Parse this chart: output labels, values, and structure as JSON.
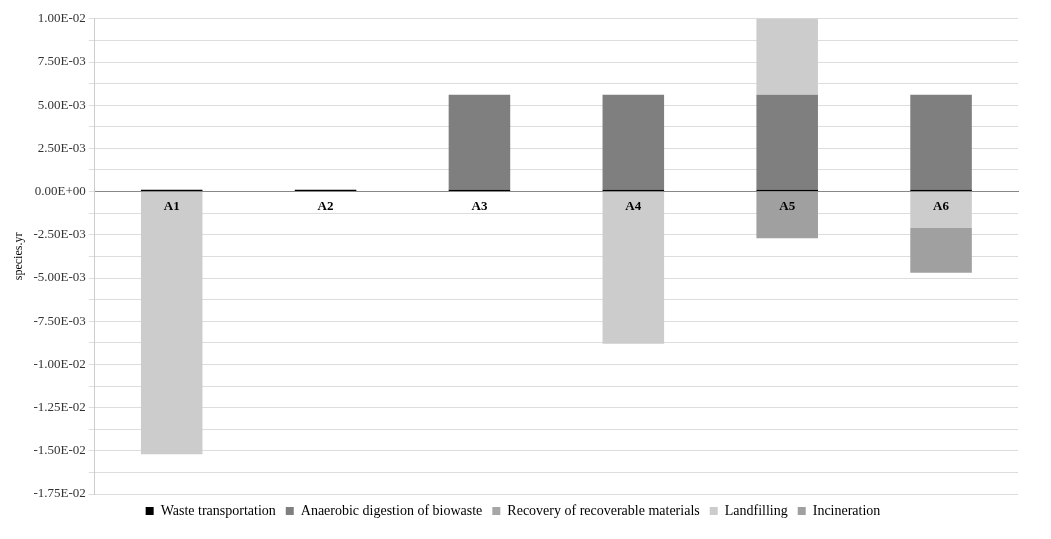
{
  "chart_data": {
    "type": "bar",
    "stacked": true,
    "ylabel": "species.yr",
    "categories": [
      "A1",
      "A2",
      "A3",
      "A4",
      "A5",
      "A6"
    ],
    "series": [
      {
        "name": "Waste transportation",
        "color": "#000000",
        "values": [
          0.0001,
          0.0001,
          0.0001,
          0.0001,
          0.0001,
          0.0001
        ]
      },
      {
        "name": "Anaerobic digestion of biowaste",
        "color": "#7f7f7f",
        "values": [
          null,
          null,
          0.0055,
          0.0055,
          0.0055,
          0.0055
        ]
      },
      {
        "name": "Recovery of recoverable materials",
        "color": "#a6a6a6",
        "values": [
          null,
          null,
          null,
          null,
          null,
          null
        ]
      },
      {
        "name": "Landfilling",
        "color": "#cccccc",
        "values": [
          -0.0152,
          null,
          null,
          -0.0088,
          0.0045,
          -0.0021
        ]
      },
      {
        "name": "Incineration",
        "color": "#a0a0a0",
        "values": [
          null,
          null,
          null,
          null,
          -0.0027,
          -0.0026
        ]
      }
    ],
    "ylim": [
      -0.0175,
      0.01
    ],
    "yticks": [
      {
        "value": -0.0175,
        "label": "-1.75E-02"
      },
      {
        "value": -0.01625,
        "label": null
      },
      {
        "value": -0.015,
        "label": "-1.50E-02"
      },
      {
        "value": -0.01375,
        "label": null
      },
      {
        "value": -0.0125,
        "label": "-1.25E-02"
      },
      {
        "value": -0.01125,
        "label": null
      },
      {
        "value": -0.01,
        "label": "-1.00E-02"
      },
      {
        "value": -0.00875,
        "label": null
      },
      {
        "value": -0.0075,
        "label": "-7.50E-03"
      },
      {
        "value": -0.00625,
        "label": null
      },
      {
        "value": -0.005,
        "label": "-5.00E-03"
      },
      {
        "value": -0.00375,
        "label": null
      },
      {
        "value": -0.0025,
        "label": "-2.50E-03"
      },
      {
        "value": -0.00125,
        "label": null
      },
      {
        "value": 0,
        "label": "0.00E+00"
      },
      {
        "value": 0.00125,
        "label": null
      },
      {
        "value": 0.0025,
        "label": "2.50E-03"
      },
      {
        "value": 0.00375,
        "label": null
      },
      {
        "value": 0.005,
        "label": "5.00E-03"
      },
      {
        "value": 0.00625,
        "label": null
      },
      {
        "value": 0.0075,
        "label": "7.50E-03"
      },
      {
        "value": 0.00875,
        "label": null
      },
      {
        "value": 0.01,
        "label": "1.00E-02"
      }
    ],
    "grid": "y",
    "legend": "bottom"
  }
}
